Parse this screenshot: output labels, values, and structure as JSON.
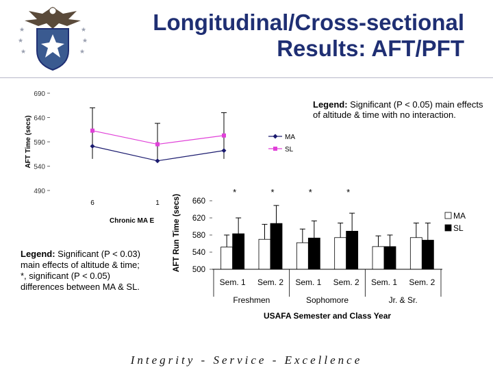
{
  "slide": {
    "title_line1": "Longitudinal/Cross-sectional",
    "title_line2": "Results: AFT/PFT",
    "footer": "Integrity - Service - Excellence",
    "title_color": "#1f2f73"
  },
  "notes": {
    "aft_legend_label": "Legend:",
    "aft_legend_text": " Significant (P < 0.05) main effects of altitude & time with no interaction.",
    "run_legend_label": "Legend:",
    "run_legend_text": " Significant (P < 0.03) main effects of altitude & time;",
    "run_legend_text2": "*, significant (P < 0.05) differences between MA & SL."
  },
  "chart_data": [
    {
      "type": "line",
      "ylabel": "AFT Time (secs)",
      "xlabel": "Chronic MA E",
      "ylim": [
        490,
        690
      ],
      "yticks": [
        490,
        540,
        590,
        640,
        690
      ],
      "x_tick_labels": [
        "6",
        "1"
      ],
      "x": [
        0,
        1,
        2
      ],
      "series": [
        {
          "name": "MA",
          "values": [
            581,
            551,
            572
          ],
          "color": "#1a1a6e",
          "marker": "diamond"
        },
        {
          "name": "SL",
          "values": [
            613,
            585,
            603
          ],
          "color": "#e040d8",
          "marker": "square"
        }
      ],
      "error_bars": [
        {
          "x": 0,
          "low": 555,
          "high": 660
        },
        {
          "x": 1,
          "low": 555,
          "high": 628
        },
        {
          "x": 2,
          "low": 555,
          "high": 650
        }
      ],
      "legend_position": "right"
    },
    {
      "type": "bar",
      "ylabel": "AFT Run Time (secs)",
      "xlabel": "USAFA Semester and Class Year",
      "ylim": [
        500,
        660
      ],
      "yticks": [
        500,
        540,
        580,
        620,
        660
      ],
      "categories": [
        "Sem. 1",
        "Sem. 2",
        "Sem. 1",
        "Sem. 2",
        "Sem. 1",
        "Sem. 2"
      ],
      "groups": [
        "Freshmen",
        "Sophomore",
        "Jr. & Sr."
      ],
      "series": [
        {
          "name": "MA",
          "values": [
            552,
            570,
            562,
            574,
            553,
            574
          ],
          "error": [
            28,
            35,
            32,
            34,
            25,
            34
          ],
          "color": "#ffffff"
        },
        {
          "name": "SL",
          "values": [
            583,
            607,
            573,
            589,
            553,
            568
          ],
          "error": [
            37,
            42,
            40,
            42,
            27,
            40
          ],
          "color": "#000000"
        }
      ],
      "significance_marker": "*",
      "significant_categories": [
        0,
        1,
        2,
        3
      ],
      "legend_position": "right"
    }
  ]
}
